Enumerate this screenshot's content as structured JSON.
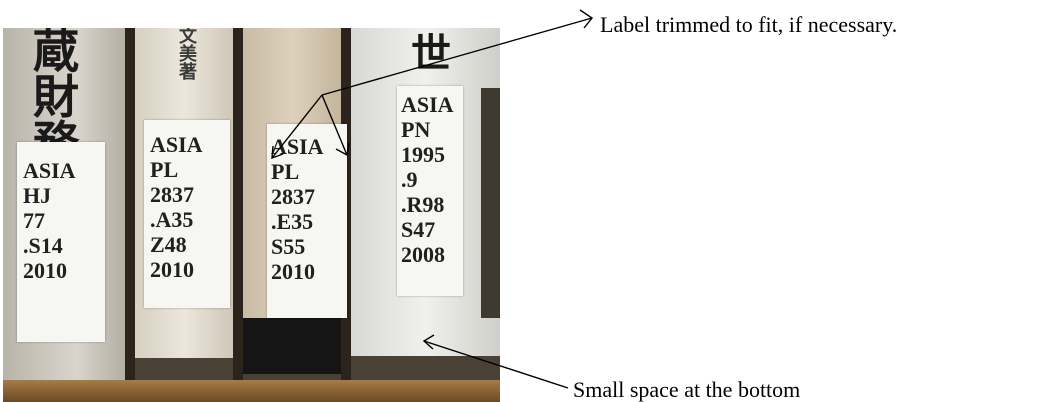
{
  "photo": {
    "description_icon": "bookshelf-photo",
    "spine_titles": [
      "蔵財務",
      "文美 著",
      "世"
    ],
    "labels": [
      [
        "ASIA",
        "HJ",
        "77",
        ".S14",
        "2010"
      ],
      [
        "ASIA",
        "PL",
        "2837",
        ".A35",
        "Z48",
        "2010"
      ],
      [
        "ASIA",
        "PL",
        "2837",
        ".E35",
        "S55",
        "2010"
      ],
      [
        "ASIA",
        "PN",
        "1995",
        ".9",
        ".R98",
        "S47",
        "2008"
      ]
    ]
  },
  "annotations": {
    "top": "Label trimmed to fit, if necessary.",
    "bottom": "Small space at the bottom"
  },
  "colors": {
    "arrow": "#000000",
    "label_bg": "#f6f6f2"
  }
}
